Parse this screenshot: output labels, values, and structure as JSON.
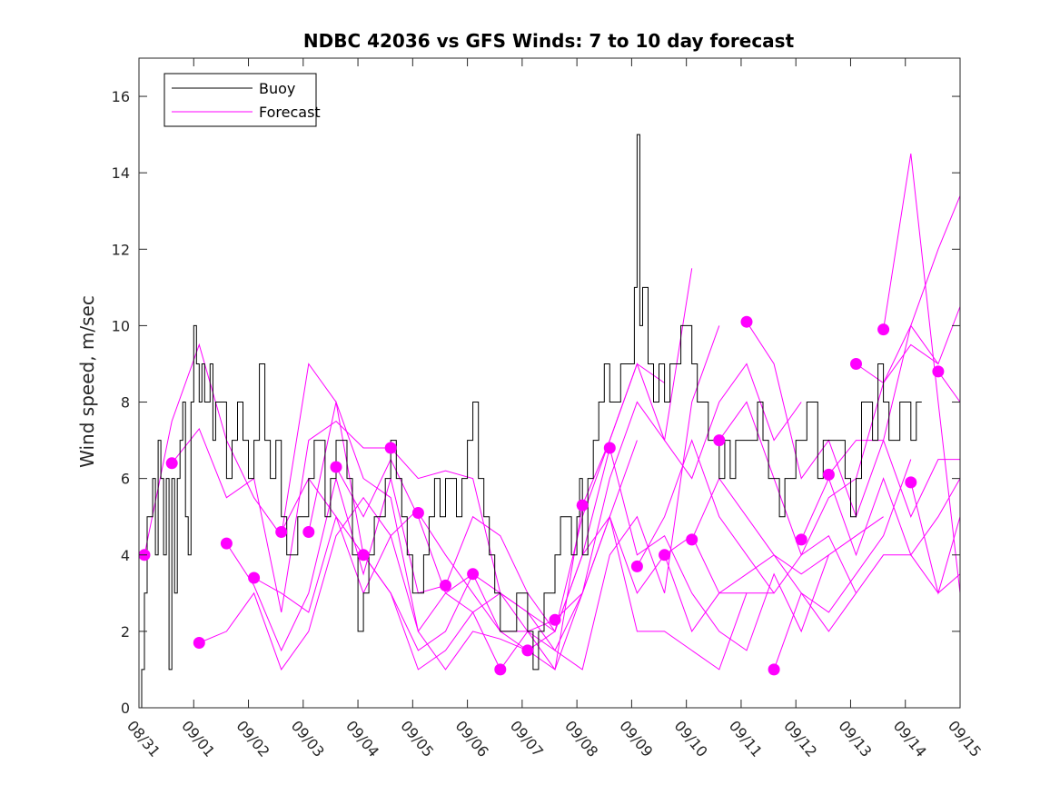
{
  "chart_data": {
    "type": "line",
    "title": "NDBC 42036 vs GFS Winds: 7 to 10 day forecast",
    "xlabel": "",
    "ylabel": "Wind speed, m/sec",
    "xlim": [
      0,
      15
    ],
    "ylim": [
      0,
      17
    ],
    "x_tick_labels": [
      "08/31",
      "09/01",
      "09/02",
      "09/03",
      "09/04",
      "09/05",
      "09/06",
      "09/07",
      "09/08",
      "09/09",
      "09/10",
      "09/11",
      "09/12",
      "09/13",
      "09/14",
      "09/15"
    ],
    "y_ticks": [
      0,
      2,
      4,
      6,
      8,
      10,
      12,
      14,
      16
    ],
    "grid": false,
    "legend_position": "top-left",
    "colors": {
      "buoy": "#000000",
      "forecast": "#ff00ff"
    },
    "series": [
      {
        "name": "Buoy",
        "x_units": "days since 08/31",
        "x": [
          0,
          0.05,
          0.1,
          0.15,
          0.2,
          0.25,
          0.3,
          0.35,
          0.4,
          0.45,
          0.5,
          0.55,
          0.6,
          0.65,
          0.7,
          0.75,
          0.8,
          0.85,
          0.9,
          0.95,
          1.0,
          1.05,
          1.1,
          1.15,
          1.2,
          1.25,
          1.3,
          1.35,
          1.4,
          1.5,
          1.6,
          1.7,
          1.8,
          1.9,
          2.0,
          2.1,
          2.2,
          2.3,
          2.4,
          2.5,
          2.6,
          2.7,
          2.8,
          2.9,
          3.0,
          3.1,
          3.2,
          3.3,
          3.4,
          3.5,
          3.6,
          3.7,
          3.8,
          3.9,
          4.0,
          4.1,
          4.2,
          4.3,
          4.4,
          4.5,
          4.6,
          4.7,
          4.8,
          4.9,
          5.0,
          5.1,
          5.2,
          5.3,
          5.4,
          5.5,
          5.6,
          5.7,
          5.8,
          5.9,
          6.0,
          6.1,
          6.2,
          6.3,
          6.4,
          6.5,
          6.6,
          6.7,
          6.8,
          6.9,
          7.0,
          7.1,
          7.2,
          7.3,
          7.4,
          7.5,
          7.6,
          7.7,
          7.8,
          7.9,
          8.0,
          8.05,
          8.1,
          8.2,
          8.3,
          8.4,
          8.5,
          8.6,
          8.7,
          8.8,
          8.9,
          9.0,
          9.05,
          9.1,
          9.15,
          9.2,
          9.3,
          9.4,
          9.5,
          9.6,
          9.7,
          9.8,
          9.9,
          10.0,
          10.1,
          10.2,
          10.3,
          10.4,
          10.5,
          10.6,
          10.7,
          10.8,
          10.9,
          11.0,
          11.1,
          11.2,
          11.3,
          11.4,
          11.5,
          11.6,
          11.7,
          11.8,
          11.9,
          12.0,
          12.1,
          12.2,
          12.3,
          12.4,
          12.5,
          12.6,
          12.7,
          12.8,
          12.9,
          13.0,
          13.1,
          13.2,
          13.3,
          13.4,
          13.5,
          13.6,
          13.7,
          13.8,
          13.9,
          14.0,
          14.1,
          14.2,
          14.3
        ],
        "values": [
          0,
          1,
          3,
          5,
          5,
          6,
          4,
          7,
          6,
          4,
          6,
          1,
          6,
          3,
          6,
          7,
          8,
          5,
          4,
          8,
          10,
          9,
          8,
          9,
          8,
          8,
          9,
          7,
          8,
          8,
          6,
          7,
          8,
          7,
          6,
          7,
          9,
          7,
          6,
          7,
          5,
          4,
          4,
          5,
          5,
          6,
          7,
          7,
          5,
          6,
          7,
          7,
          6,
          4,
          2,
          3,
          4,
          5,
          5,
          6,
          7,
          6,
          5,
          4,
          3,
          3,
          4,
          5,
          6,
          5,
          6,
          6,
          5,
          6,
          7,
          8,
          6,
          5,
          4,
          3,
          2,
          2,
          2,
          3,
          3,
          2,
          1,
          2,
          3,
          3,
          4,
          5,
          5,
          4,
          5,
          6,
          4,
          6,
          7,
          8,
          9,
          8,
          8,
          9,
          9,
          9,
          11,
          15,
          10,
          11,
          9,
          8,
          9,
          8,
          9,
          9,
          10,
          10,
          9,
          8,
          8,
          7,
          7,
          6,
          7,
          6,
          7,
          7,
          7,
          7,
          8,
          7,
          6,
          6,
          5,
          6,
          6,
          7,
          7,
          8,
          8,
          6,
          7,
          7,
          7,
          7,
          6,
          5,
          6,
          8,
          8,
          7,
          9,
          8,
          7,
          7,
          8,
          8,
          7,
          8,
          8
        ]
      },
      {
        "name": "Forecast",
        "x_units": "days since 08/31",
        "runs": [
          {
            "x": [
              0.1,
              0.6,
              1.1,
              1.6,
              2.1,
              2.6,
              3.1,
              3.6,
              4.1
            ],
            "values": [
              4,
              7.5,
              9.5,
              7,
              5.5,
              4.5,
              9,
              8,
              4
            ]
          },
          {
            "x": [
              0.6,
              1.1,
              1.6,
              2.1,
              2.6,
              3.1,
              3.6,
              4.1,
              4.6
            ],
            "values": [
              6.4,
              7.3,
              5.5,
              6,
              2.5,
              7,
              7.5,
              6.8,
              6.8
            ]
          },
          {
            "x": [
              1.1,
              1.6,
              2.1,
              2.6,
              3.1,
              3.6,
              4.1,
              4.6,
              5.1
            ],
            "values": [
              1.7,
              2,
              3,
              1,
              2,
              4.5,
              5.5,
              4.5,
              5.2
            ]
          },
          {
            "x": [
              1.6,
              2.1,
              2.6,
              3.1,
              3.6,
              4.1,
              4.6,
              5.1,
              5.6
            ],
            "values": [
              4.3,
              3.2,
              1.5,
              3,
              6,
              3.5,
              6,
              3,
              3.2
            ]
          },
          {
            "x": [
              2.1,
              2.6,
              3.1,
              3.6,
              4.1,
              4.6,
              5.1,
              5.6,
              6.1
            ],
            "values": [
              3.4,
              3,
              2.5,
              5,
              3,
              4.5,
              2,
              3,
              3.5
            ]
          },
          {
            "x": [
              2.6,
              3.1,
              3.6,
              4.1,
              4.6,
              5.1,
              5.6,
              6.1,
              6.6
            ],
            "values": [
              4.6,
              6,
              5,
              4,
              3,
              1,
              1.5,
              2.5,
              1
            ]
          },
          {
            "x": [
              3.1,
              3.6,
              4.1,
              4.6,
              5.1,
              5.6,
              6.1,
              6.6,
              7.1
            ],
            "values": [
              4.6,
              8,
              6,
              5.5,
              2,
              1,
              2,
              1.8,
              1.5
            ]
          },
          {
            "x": [
              3.6,
              4.1,
              4.6,
              5.1,
              5.6,
              6.1,
              6.6,
              7.1,
              7.6
            ],
            "values": [
              6.3,
              5,
              6.5,
              5,
              3,
              2.5,
              3,
              2,
              2.3
            ]
          },
          {
            "x": [
              4.1,
              4.6,
              5.1,
              5.6,
              6.1,
              6.6,
              7.1,
              7.6,
              8.1
            ],
            "values": [
              4,
              3,
              1.5,
              2,
              3.5,
              2,
              1.5,
              1,
              5.3
            ]
          },
          {
            "x": [
              4.6,
              5.1,
              5.6,
              6.1,
              6.6,
              7.1,
              7.6,
              8.1,
              8.6
            ],
            "values": [
              6.8,
              6,
              6.2,
              6,
              3,
              2.5,
              2,
              4,
              6.8
            ]
          },
          {
            "x": [
              5.1,
              5.6,
              6.1,
              6.6,
              7.1,
              7.6,
              8.1,
              8.6,
              9.1
            ],
            "values": [
              5.1,
              4,
              3,
              2,
              2,
              1,
              3,
              5,
              7
            ]
          },
          {
            "x": [
              5.6,
              6.1,
              6.6,
              7.1,
              7.6,
              8.1,
              8.6,
              9.1,
              9.6
            ],
            "values": [
              3.2,
              5,
              4.5,
              3,
              2,
              5,
              7,
              9,
              8.5
            ]
          },
          {
            "x": [
              6.1,
              6.6,
              7.1,
              7.6,
              8.1,
              8.6,
              9.1,
              9.6,
              10.1
            ],
            "values": [
              3.5,
              3,
              2.5,
              1.5,
              3,
              6,
              8,
              7,
              11.5
            ]
          },
          {
            "x": [
              6.6,
              7.1,
              7.6,
              8.1,
              8.6,
              9.1,
              9.6,
              10.1,
              10.6
            ],
            "values": [
              1,
              2,
              1.5,
              1,
              4,
              5,
              3,
              8,
              10
            ]
          },
          {
            "x": [
              7.1,
              7.6,
              8.1,
              8.6,
              9.1,
              9.6,
              10.1,
              10.6,
              11.1
            ],
            "values": [
              1.5,
              2,
              4,
              5,
              3,
              4,
              2,
              3,
              3
            ]
          },
          {
            "x": [
              7.6,
              8.1,
              8.6,
              9.1,
              9.6,
              10.1,
              10.6,
              11.1,
              11.6
            ],
            "values": [
              2.3,
              3,
              5,
              2,
              2,
              1.5,
              1,
              3,
              3
            ]
          },
          {
            "x": [
              8.1,
              8.6,
              9.1,
              9.6,
              10.1,
              10.6,
              11.1,
              11.6,
              12.1
            ],
            "values": [
              5.3,
              7,
              9,
              7,
              6,
              8,
              9,
              7,
              8
            ]
          },
          {
            "x": [
              8.6,
              9.1,
              9.6,
              10.1,
              10.6,
              11.1,
              11.6,
              12.1,
              12.6
            ],
            "values": [
              6.8,
              4,
              4.5,
              3,
              2,
              1.5,
              3.5,
              2,
              4
            ]
          },
          {
            "x": [
              9.1,
              9.6,
              10.1,
              10.6,
              11.1,
              11.6,
              12.1,
              12.6,
              13.1
            ],
            "values": [
              3.7,
              5,
              7,
              5,
              4,
              3,
              4,
              4.5,
              3
            ]
          },
          {
            "x": [
              9.6,
              10.1,
              10.6,
              11.1,
              11.6,
              12.1,
              12.6,
              13.1,
              13.6
            ],
            "values": [
              4,
              4.5,
              3,
              3.5,
              4,
              3.5,
              4,
              4.5,
              5
            ]
          },
          {
            "x": [
              10.1,
              10.6,
              11.1,
              11.6,
              12.1,
              12.6,
              13.1,
              13.6,
              14.1
            ],
            "values": [
              4.4,
              6,
              5,
              4,
              3,
              2.5,
              3.5,
              4.5,
              6.5
            ]
          },
          {
            "x": [
              10.6,
              11.1,
              11.6,
              12.1,
              12.6,
              13.1,
              13.6,
              14.1,
              14.6
            ],
            "values": [
              7,
              8,
              6,
              4,
              5.5,
              6,
              8.5,
              9.5,
              9
            ]
          },
          {
            "x": [
              11.1,
              11.6,
              12.1,
              12.6,
              13.1,
              13.6,
              14.1,
              14.6,
              15.0
            ],
            "values": [
              10.1,
              9,
              6,
              7,
              5,
              7,
              10,
              12,
              13.4
            ]
          },
          {
            "x": [
              11.6,
              12.1,
              12.6,
              13.1,
              13.6,
              14.1,
              14.6,
              15.0
            ],
            "values": [
              1,
              3,
              2,
              3,
              4,
              4,
              3,
              3.5
            ]
          },
          {
            "x": [
              12.1,
              12.6,
              13.1,
              13.6,
              14.1,
              14.6,
              15.0
            ],
            "values": [
              4.4,
              6,
              4,
              6,
              4,
              5,
              6
            ]
          },
          {
            "x": [
              12.6,
              13.1,
              13.6,
              14.1,
              14.6,
              15.0
            ],
            "values": [
              6.1,
              7,
              7,
              5,
              6.5,
              6.5
            ]
          },
          {
            "x": [
              13.1,
              13.6,
              14.1,
              14.6,
              15.0
            ],
            "values": [
              9,
              8.5,
              10,
              9,
              10.5
            ]
          },
          {
            "x": [
              13.6,
              14.1,
              14.6,
              15.0
            ],
            "values": [
              9.9,
              14.5,
              8,
              3
            ]
          },
          {
            "x": [
              14.1,
              14.6,
              15.0
            ],
            "values": [
              5.9,
              3,
              5
            ]
          },
          {
            "x": [
              14.6,
              15.0
            ],
            "values": [
              8.8,
              8
            ]
          }
        ],
        "dots": {
          "x": [
            0.1,
            0.6,
            1.1,
            1.6,
            2.1,
            2.6,
            3.1,
            3.6,
            4.1,
            4.6,
            5.1,
            5.6,
            6.1,
            6.6,
            7.1,
            7.6,
            8.1,
            8.6,
            9.1,
            9.6,
            10.1,
            10.6,
            11.1,
            11.6,
            12.1,
            12.6,
            13.1,
            13.6,
            14.1,
            14.6
          ],
          "values": [
            4,
            6.4,
            1.7,
            4.3,
            3.4,
            4.6,
            4.6,
            6.3,
            4,
            6.8,
            5.1,
            3.2,
            3.5,
            1,
            1.5,
            2.3,
            5.3,
            6.8,
            3.7,
            4,
            4.4,
            7,
            10.1,
            1,
            4.4,
            6.1,
            9,
            9.9,
            5.9,
            8.8
          ]
        }
      }
    ]
  }
}
